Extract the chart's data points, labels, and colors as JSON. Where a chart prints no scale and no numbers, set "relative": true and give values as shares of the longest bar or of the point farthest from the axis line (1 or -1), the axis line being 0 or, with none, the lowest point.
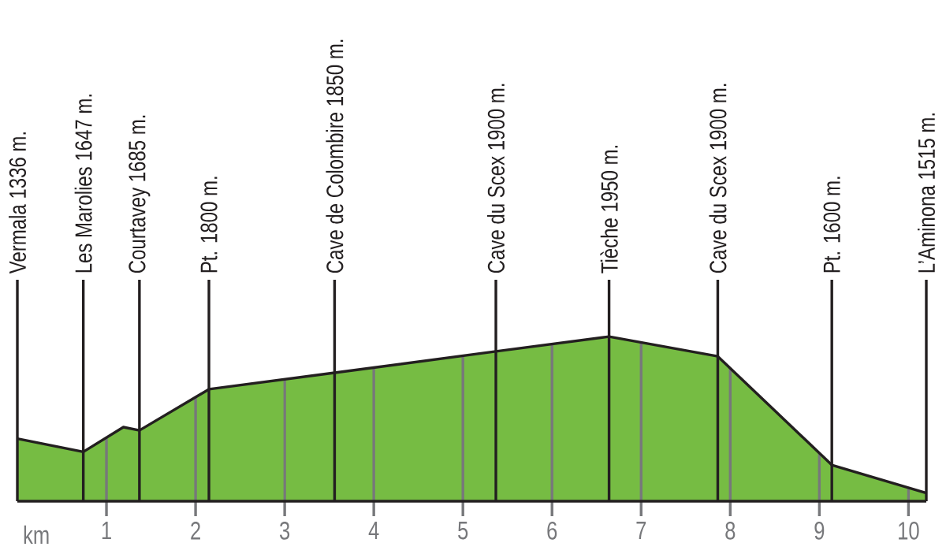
{
  "chart_data": {
    "type": "area",
    "relative": true,
    "xlabel": "km",
    "color": "#76bc43",
    "grid": "x",
    "x": [
      0,
      0.74,
      1.19,
      1.37,
      2.15,
      3.56,
      5.37,
      6.64,
      7.86,
      9.14,
      10.2
    ],
    "values": [
      0.38,
      0.3,
      0.45,
      0.43,
      0.68,
      0.78,
      0.91,
      1,
      0.88,
      0.22,
      0.05
    ],
    "xlim": [
      0,
      10.2
    ],
    "xticks": [
      1,
      2,
      3,
      4,
      5,
      6,
      7,
      8,
      9,
      10
    ],
    "ref_lines": [
      {
        "axis": "x",
        "value": 0,
        "label": "Vermala 1336 m."
      },
      {
        "axis": "x",
        "value": 0.74,
        "label": "Les Marolies 1647 m."
      },
      {
        "axis": "x",
        "value": 1.37,
        "label": "Courtavey 1685 m."
      },
      {
        "axis": "x",
        "value": 2.15,
        "label": "Pt. 1800 m."
      },
      {
        "axis": "x",
        "value": 3.56,
        "label": "Cave de Colombire 1850 m."
      },
      {
        "axis": "x",
        "value": 5.37,
        "label": "Cave du Scex 1900 m."
      },
      {
        "axis": "x",
        "value": 6.64,
        "label": "Tièche 1950 m."
      },
      {
        "axis": "x",
        "value": 7.86,
        "label": "Cave du Scex 1900 m."
      },
      {
        "axis": "x",
        "value": 9.14,
        "label": "Pt. 1600 m."
      },
      {
        "axis": "x",
        "value": 10.2,
        "label": "L’Aminona 1515 m."
      }
    ]
  }
}
